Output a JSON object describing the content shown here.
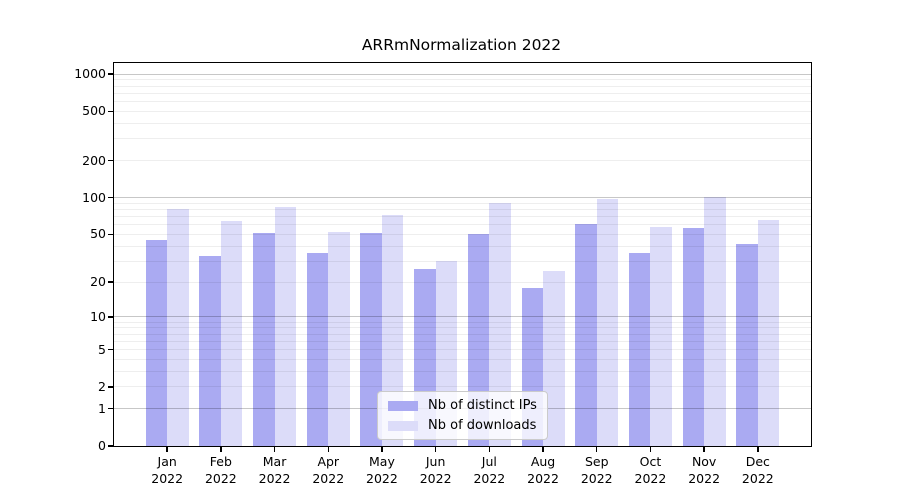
{
  "chart_data": {
    "type": "bar",
    "title": "ARRmNormalization 2022",
    "categories": [
      "Jan",
      "Feb",
      "Mar",
      "Apr",
      "May",
      "Jun",
      "Jul",
      "Aug",
      "Sep",
      "Oct",
      "Nov",
      "Dec"
    ],
    "x_year": "2022",
    "series": [
      {
        "name": "Nb of distinct IPs",
        "color": "#aaaaf2",
        "values": [
          45,
          33,
          51,
          35,
          51,
          26,
          50,
          18,
          61,
          35,
          57,
          42
        ]
      },
      {
        "name": "Nb of downloads",
        "color": "#dcdcf9",
        "values": [
          81,
          65,
          84,
          52,
          72,
          30,
          91,
          25,
          97,
          58,
          102,
          66
        ]
      }
    ],
    "xlabel": "",
    "ylabel": "",
    "yscale": "symlog-log1p",
    "y_ticks": [
      0,
      1,
      2,
      5,
      10,
      20,
      50,
      100,
      200,
      500,
      1000
    ],
    "ylim": [
      0,
      1232
    ],
    "grid": "horizontal major and minor, drawn above bars",
    "legend_position": "lower center",
    "colors": {
      "major_grid": "#c7c7c7",
      "minor_grid": "#ededed",
      "axis": "#000000",
      "background": "#ffffff"
    }
  }
}
